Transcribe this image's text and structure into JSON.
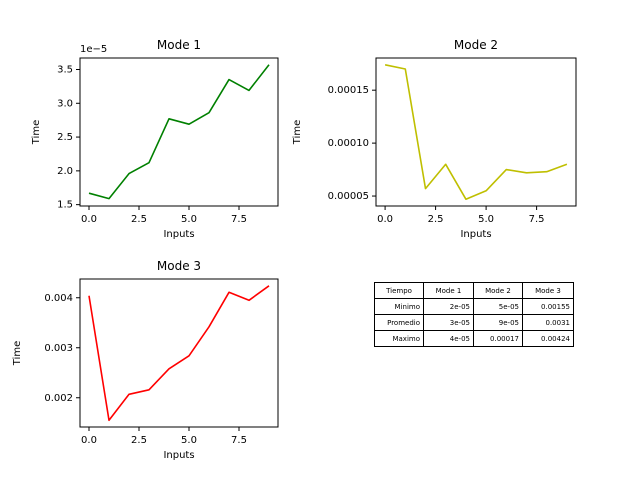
{
  "chart_data": [
    {
      "type": "line",
      "title": "Mode 1",
      "xlabel": "Inputs",
      "ylabel": "Time",
      "offset_label": "1e−5",
      "color": "#008000",
      "x": [
        0,
        1,
        2,
        3,
        4,
        5,
        6,
        7,
        8,
        9
      ],
      "y": [
        1.67e-05,
        1.59e-05,
        1.96e-05,
        2.12e-05,
        2.77e-05,
        2.69e-05,
        2.86e-05,
        3.35e-05,
        3.19e-05,
        3.57e-05
      ],
      "xlim": [
        -0.45,
        9.45
      ],
      "ylim": [
        1.48e-05,
        3.67e-05
      ],
      "xticks": [
        0,
        2.5,
        5,
        7.5
      ],
      "xtick_labels": [
        "0.0",
        "2.5",
        "5.0",
        "7.5"
      ],
      "yticks": [
        1.5e-05,
        2e-05,
        2.5e-05,
        3e-05,
        3.5e-05
      ],
      "ytick_labels": [
        "1.5",
        "2.0",
        "2.5",
        "3.0",
        "3.5"
      ]
    },
    {
      "type": "line",
      "title": "Mode 2",
      "xlabel": "Inputs",
      "ylabel": "Time",
      "color": "#bfbf00",
      "x": [
        0,
        1,
        2,
        3,
        4,
        5,
        6,
        7,
        8,
        9
      ],
      "y": [
        0.000174,
        0.00017,
        5.7e-05,
        8e-05,
        4.7e-05,
        5.5e-05,
        7.5e-05,
        7.2e-05,
        7.3e-05,
        8e-05
      ],
      "xlim": [
        -0.45,
        9.45
      ],
      "ylim": [
        4.06e-05,
        0.0001804
      ],
      "xticks": [
        0,
        2.5,
        5,
        7.5
      ],
      "xtick_labels": [
        "0.0",
        "2.5",
        "5.0",
        "7.5"
      ],
      "yticks": [
        5e-05,
        0.0001,
        0.00015
      ],
      "ytick_labels": [
        "0.00005",
        "0.00010",
        "0.00015"
      ]
    },
    {
      "type": "line",
      "title": "Mode 3",
      "xlabel": "Inputs",
      "ylabel": "Time",
      "color": "#ff0000",
      "x": [
        0,
        1,
        2,
        3,
        4,
        5,
        6,
        7,
        8,
        9
      ],
      "y": [
        0.00404,
        0.00155,
        0.00207,
        0.00216,
        0.00258,
        0.00284,
        0.00342,
        0.00411,
        0.00395,
        0.00424
      ],
      "xlim": [
        -0.45,
        9.45
      ],
      "ylim": [
        0.001415,
        0.004375
      ],
      "xticks": [
        0,
        2.5,
        5,
        7.5
      ],
      "xtick_labels": [
        "0.0",
        "2.5",
        "5.0",
        "7.5"
      ],
      "yticks": [
        0.002,
        0.003,
        0.004
      ],
      "ytick_labels": [
        "0.002",
        "0.003",
        "0.004"
      ]
    },
    {
      "type": "table",
      "headers": [
        "Tiempo",
        "Mode 1",
        "Mode 2",
        "Mode 3"
      ],
      "rows": [
        [
          "Minimo",
          "2e-05",
          "5e-05",
          "0.00155"
        ],
        [
          "Promedio",
          "3e-05",
          "9e-05",
          "0.0031"
        ],
        [
          "Maximo",
          "4e-05",
          "0.00017",
          "0.00424"
        ]
      ]
    }
  ]
}
